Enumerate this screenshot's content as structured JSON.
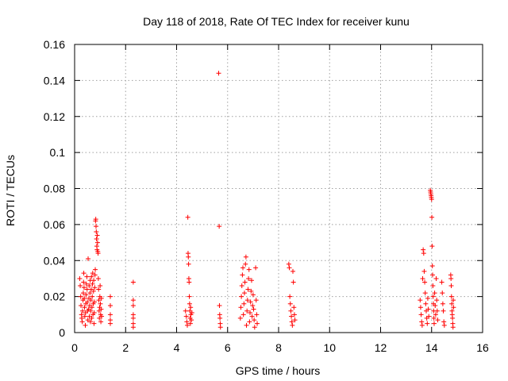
{
  "chart_data": {
    "type": "scatter",
    "title": "Day 118 of 2018, Rate Of TEC Index for receiver kunu",
    "xlabel": "GPS time / hours",
    "ylabel": "ROTI / TECUs",
    "xlim": [
      0,
      16
    ],
    "ylim": [
      0,
      0.16
    ],
    "xticks": [
      0,
      2,
      4,
      6,
      8,
      10,
      12,
      14,
      16
    ],
    "xtick_labels": [
      "0",
      "2",
      "4",
      "6",
      "8",
      "10",
      "12",
      "14",
      "16"
    ],
    "yticks": [
      0,
      0.02,
      0.04,
      0.06,
      0.08,
      0.1,
      0.12,
      0.14,
      0.16
    ],
    "ytick_labels": [
      "0",
      "0.02",
      "0.04",
      "0.06",
      "0.08",
      "0.1",
      "0.12",
      "0.14",
      "0.16"
    ],
    "grid": true,
    "marker": "+",
    "color": "#ff0000",
    "series": [
      {
        "name": "ROTI",
        "points": [
          [
            0.2,
            0.03
          ],
          [
            0.22,
            0.026
          ],
          [
            0.24,
            0.02
          ],
          [
            0.25,
            0.015
          ],
          [
            0.27,
            0.01
          ],
          [
            0.28,
            0.008
          ],
          [
            0.3,
            0.006
          ],
          [
            0.31,
            0.012
          ],
          [
            0.33,
            0.018
          ],
          [
            0.34,
            0.022
          ],
          [
            0.35,
            0.028
          ],
          [
            0.36,
            0.033
          ],
          [
            0.37,
            0.025
          ],
          [
            0.38,
            0.019
          ],
          [
            0.39,
            0.014
          ],
          [
            0.4,
            0.009
          ],
          [
            0.42,
            0.004
          ],
          [
            0.43,
            0.011
          ],
          [
            0.44,
            0.016
          ],
          [
            0.45,
            0.021
          ],
          [
            0.46,
            0.027
          ],
          [
            0.48,
            0.031
          ],
          [
            0.49,
            0.024
          ],
          [
            0.5,
            0.017
          ],
          [
            0.51,
            0.012
          ],
          [
            0.52,
            0.007
          ],
          [
            0.53,
            0.041
          ],
          [
            0.55,
            0.013
          ],
          [
            0.56,
            0.019
          ],
          [
            0.57,
            0.026
          ],
          [
            0.58,
            0.009
          ],
          [
            0.59,
            0.015
          ],
          [
            0.6,
            0.022
          ],
          [
            0.61,
            0.029
          ],
          [
            0.62,
            0.006
          ],
          [
            0.63,
            0.012
          ],
          [
            0.64,
            0.018
          ],
          [
            0.65,
            0.024
          ],
          [
            0.66,
            0.031
          ],
          [
            0.67,
            0.008
          ],
          [
            0.68,
            0.014
          ],
          [
            0.69,
            0.02
          ],
          [
            0.7,
            0.027
          ],
          [
            0.71,
            0.033
          ],
          [
            0.72,
            0.01
          ],
          [
            0.73,
            0.016
          ],
          [
            0.74,
            0.023
          ],
          [
            0.75,
            0.029
          ],
          [
            0.76,
            0.005
          ],
          [
            0.77,
            0.011
          ],
          [
            0.78,
            0.017
          ],
          [
            0.79,
            0.025
          ],
          [
            0.8,
            0.032
          ],
          [
            0.81,
            0.035
          ],
          [
            0.82,
            0.062
          ],
          [
            0.83,
            0.063
          ],
          [
            0.84,
            0.059
          ],
          [
            0.85,
            0.056
          ],
          [
            0.86,
            0.052
          ],
          [
            0.87,
            0.048
          ],
          [
            0.88,
            0.046
          ],
          [
            0.89,
            0.054
          ],
          [
            0.9,
            0.05
          ],
          [
            0.91,
            0.045
          ],
          [
            0.92,
            0.044
          ],
          [
            0.93,
            0.03
          ],
          [
            0.94,
            0.024
          ],
          [
            0.95,
            0.018
          ],
          [
            0.96,
            0.012
          ],
          [
            0.97,
            0.008
          ],
          [
            0.98,
            0.014
          ],
          [
            0.99,
            0.02
          ],
          [
            1.0,
            0.026
          ],
          [
            1.01,
            0.016
          ],
          [
            1.02,
            0.01
          ],
          [
            1.03,
            0.006
          ],
          [
            1.04,
            0.013
          ],
          [
            1.05,
            0.019
          ],
          [
            1.06,
            0.009
          ],
          [
            1.4,
            0.02
          ],
          [
            1.4,
            0.015
          ],
          [
            1.4,
            0.01
          ],
          [
            1.4,
            0.007
          ],
          [
            1.4,
            0.005
          ],
          [
            2.3,
            0.028
          ],
          [
            2.3,
            0.018
          ],
          [
            2.3,
            0.015
          ],
          [
            2.3,
            0.01
          ],
          [
            2.3,
            0.008
          ],
          [
            2.3,
            0.005
          ],
          [
            2.3,
            0.003
          ],
          [
            4.35,
            0.012
          ],
          [
            4.38,
            0.009
          ],
          [
            4.4,
            0.006
          ],
          [
            4.42,
            0.004
          ],
          [
            4.44,
            0.064
          ],
          [
            4.45,
            0.044
          ],
          [
            4.46,
            0.042
          ],
          [
            4.47,
            0.038
          ],
          [
            4.48,
            0.03
          ],
          [
            4.49,
            0.028
          ],
          [
            4.5,
            0.02
          ],
          [
            4.51,
            0.016
          ],
          [
            4.52,
            0.012
          ],
          [
            4.53,
            0.008
          ],
          [
            4.54,
            0.005
          ],
          [
            4.55,
            0.014
          ],
          [
            4.56,
            0.01
          ],
          [
            4.58,
            0.007
          ],
          [
            4.6,
            0.011
          ],
          [
            5.65,
            0.144
          ],
          [
            5.67,
            0.059
          ],
          [
            5.68,
            0.015
          ],
          [
            5.69,
            0.01
          ],
          [
            5.7,
            0.008
          ],
          [
            5.71,
            0.005
          ],
          [
            5.72,
            0.003
          ],
          [
            6.5,
            0.008
          ],
          [
            6.52,
            0.014
          ],
          [
            6.54,
            0.02
          ],
          [
            6.56,
            0.026
          ],
          [
            6.58,
            0.032
          ],
          [
            6.6,
            0.036
          ],
          [
            6.62,
            0.01
          ],
          [
            6.64,
            0.016
          ],
          [
            6.66,
            0.022
          ],
          [
            6.68,
            0.028
          ],
          [
            6.7,
            0.038
          ],
          [
            6.72,
            0.042
          ],
          [
            6.74,
            0.004
          ],
          [
            6.76,
            0.012
          ],
          [
            6.78,
            0.018
          ],
          [
            6.8,
            0.024
          ],
          [
            6.82,
            0.03
          ],
          [
            6.84,
            0.035
          ],
          [
            6.86,
            0.006
          ],
          [
            6.88,
            0.011
          ],
          [
            6.9,
            0.017
          ],
          [
            6.92,
            0.023
          ],
          [
            6.94,
            0.029
          ],
          [
            6.96,
            0.009
          ],
          [
            6.98,
            0.015
          ],
          [
            7.0,
            0.021
          ],
          [
            7.02,
            0.013
          ],
          [
            7.04,
            0.007
          ],
          [
            7.06,
            0.003
          ],
          [
            7.1,
            0.036
          ],
          [
            7.12,
            0.018
          ],
          [
            7.14,
            0.01
          ],
          [
            7.16,
            0.005
          ],
          [
            8.4,
            0.038
          ],
          [
            8.42,
            0.036
          ],
          [
            8.44,
            0.02
          ],
          [
            8.46,
            0.016
          ],
          [
            8.48,
            0.012
          ],
          [
            8.5,
            0.009
          ],
          [
            8.52,
            0.006
          ],
          [
            8.54,
            0.004
          ],
          [
            8.56,
            0.034
          ],
          [
            8.58,
            0.028
          ],
          [
            8.6,
            0.014
          ],
          [
            8.62,
            0.01
          ],
          [
            8.64,
            0.007
          ],
          [
            13.55,
            0.018
          ],
          [
            13.57,
            0.014
          ],
          [
            13.59,
            0.01
          ],
          [
            13.61,
            0.006
          ],
          [
            13.63,
            0.004
          ],
          [
            13.65,
            0.03
          ],
          [
            13.67,
            0.046
          ],
          [
            13.69,
            0.044
          ],
          [
            13.71,
            0.034
          ],
          [
            13.73,
            0.028
          ],
          [
            13.75,
            0.022
          ],
          [
            13.77,
            0.016
          ],
          [
            13.79,
            0.012
          ],
          [
            13.81,
            0.008
          ],
          [
            13.83,
            0.005
          ],
          [
            13.85,
            0.019
          ],
          [
            13.87,
            0.013
          ],
          [
            13.89,
            0.009
          ],
          [
            13.95,
            0.079
          ],
          [
            13.96,
            0.078
          ],
          [
            13.97,
            0.077
          ],
          [
            13.98,
            0.076
          ],
          [
            13.99,
            0.075
          ],
          [
            14.0,
            0.074
          ],
          [
            14.01,
            0.064
          ],
          [
            14.02,
            0.048
          ],
          [
            14.03,
            0.037
          ],
          [
            14.04,
            0.032
          ],
          [
            14.05,
            0.026
          ],
          [
            14.06,
            0.02
          ],
          [
            14.07,
            0.016
          ],
          [
            14.08,
            0.012
          ],
          [
            14.09,
            0.008
          ],
          [
            14.1,
            0.005
          ],
          [
            14.12,
            0.022
          ],
          [
            14.14,
            0.015
          ],
          [
            14.16,
            0.01
          ],
          [
            14.18,
            0.03
          ],
          [
            14.2,
            0.018
          ],
          [
            14.22,
            0.012
          ],
          [
            14.24,
            0.007
          ],
          [
            14.4,
            0.028
          ],
          [
            14.42,
            0.022
          ],
          [
            14.44,
            0.016
          ],
          [
            14.46,
            0.012
          ],
          [
            14.48,
            0.006
          ],
          [
            14.5,
            0.004
          ],
          [
            14.75,
            0.032
          ],
          [
            14.76,
            0.03
          ],
          [
            14.77,
            0.026
          ],
          [
            14.78,
            0.02
          ],
          [
            14.79,
            0.016
          ],
          [
            14.8,
            0.012
          ],
          [
            14.81,
            0.01
          ],
          [
            14.82,
            0.008
          ],
          [
            14.83,
            0.005
          ],
          [
            14.84,
            0.003
          ],
          [
            14.85,
            0.018
          ],
          [
            14.86,
            0.014
          ]
        ]
      }
    ]
  }
}
